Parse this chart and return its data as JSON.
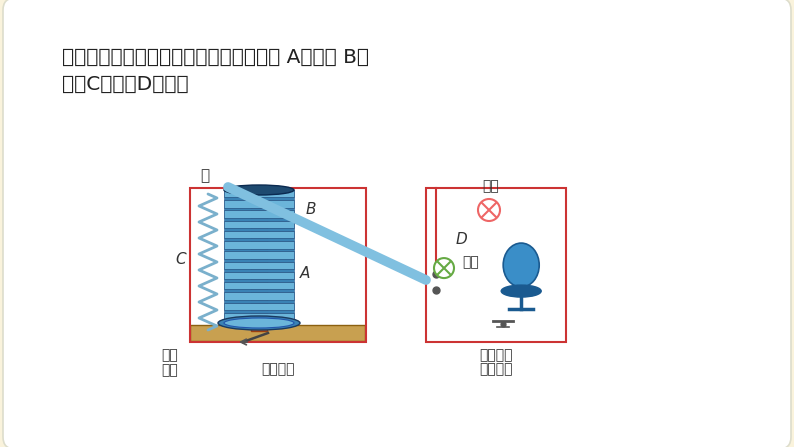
{
  "bg_color": "#FAF3DC",
  "card_color": "#FFFFFF",
  "title_line1": "电磁继电器的结构如图所示，它由电磁铁 A、衔铁 B、",
  "title_line2": "弹簧C和触点D组成。",
  "title_fontsize": 14.5,
  "title_color": "#222222",
  "label_jia": "甲",
  "label_B": "B",
  "label_C": "C",
  "label_A": "A",
  "label_D": "D",
  "label_red": "红灯",
  "label_green": "绿灯",
  "label_low1": "低压",
  "label_low2": "电源",
  "label_high": "高压电源",
  "label_ctrl": "控制电路",
  "label_work": "工作电路",
  "coil_color_light": "#6BB5DA",
  "coil_color_dark": "#3A82B5",
  "coil_stripe": "#2A5A8A",
  "iron_color": "#C96030",
  "base_color": "#C8A050",
  "base_edge": "#8B6010",
  "spring_color": "#7AB0CC",
  "arm_color": "#80C0E0",
  "arm_edge": "#B09070",
  "circuit_color": "#CC3333",
  "ctrl_line_color": "#777777",
  "lamp_red_color": "#EE6666",
  "lamp_green_color": "#66AA44",
  "motor_color": "#3A8EC8",
  "motor_dark": "#1A5A90"
}
